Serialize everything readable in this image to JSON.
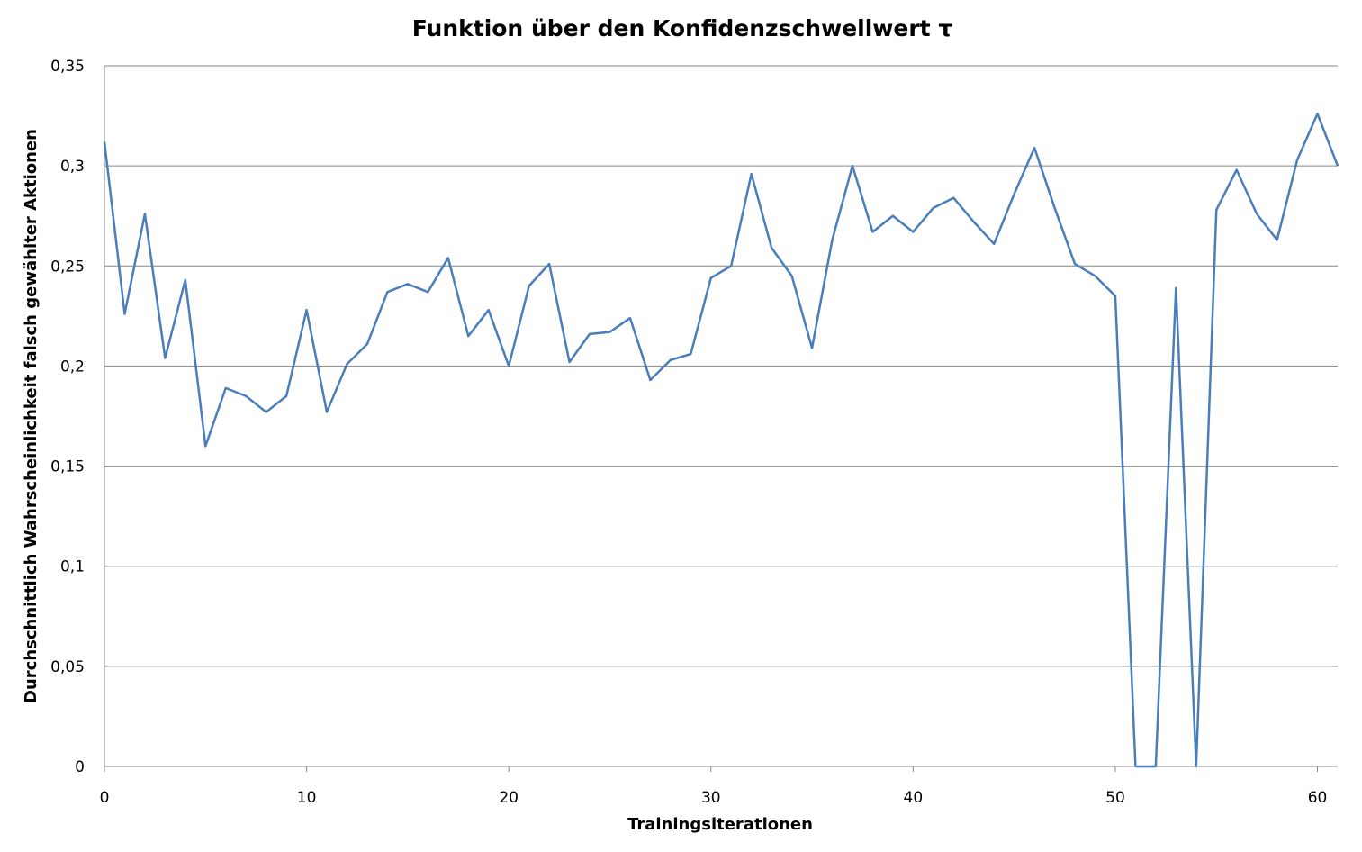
{
  "chart_data": {
    "type": "line",
    "title": "Funktion über den Konfidenzschwellwert τ",
    "xlabel": "Trainingsiterationen",
    "ylabel": "Durchschnittlich Wahrscheinlichkeit falsch gewählter Aktionen",
    "xlim": [
      0,
      61
    ],
    "ylim": [
      0,
      0.35
    ],
    "x_ticks": [
      0,
      10,
      20,
      30,
      40,
      50,
      60
    ],
    "x_tick_labels": [
      "0",
      "10",
      "20",
      "30",
      "40",
      "50",
      "60"
    ],
    "y_ticks": [
      0,
      0.05,
      0.1,
      0.15,
      0.2,
      0.25,
      0.3,
      0.35
    ],
    "y_tick_labels": [
      "0",
      "0,05",
      "0,1",
      "0,15",
      "0,2",
      "0,25",
      "0,3",
      "0,35"
    ],
    "grid": "horizontal",
    "line_color": "#4a7ebb",
    "series": [
      {
        "x": [
          0,
          1,
          2,
          3,
          4,
          5,
          6,
          7,
          8,
          9,
          10,
          11,
          12,
          13,
          14,
          15,
          16,
          17,
          18,
          19,
          20,
          21,
          22,
          23,
          24,
          25,
          26,
          27,
          28,
          29,
          30,
          31,
          32,
          33,
          34,
          35,
          36,
          37,
          38,
          39,
          40,
          41,
          42,
          43,
          44,
          45,
          46,
          47,
          48,
          49,
          50,
          51,
          52,
          53,
          54,
          55,
          56,
          57,
          58,
          59,
          60,
          61
        ],
        "values": [
          0.312,
          0.226,
          0.276,
          0.204,
          0.243,
          0.16,
          0.189,
          0.185,
          0.177,
          0.185,
          0.228,
          0.177,
          0.201,
          0.211,
          0.237,
          0.241,
          0.237,
          0.254,
          0.215,
          0.228,
          0.2,
          0.24,
          0.251,
          0.202,
          0.216,
          0.217,
          0.224,
          0.193,
          0.203,
          0.206,
          0.244,
          0.25,
          0.296,
          0.259,
          0.245,
          0.209,
          0.263,
          0.3,
          0.267,
          0.275,
          0.267,
          0.279,
          0.284,
          0.272,
          0.261,
          0.286,
          0.309,
          0.279,
          0.251,
          0.245,
          0.235,
          0.0,
          0.0,
          0.239,
          0.0,
          0.278,
          0.298,
          0.276,
          0.263,
          0.303,
          0.326,
          0.3
        ]
      }
    ]
  }
}
